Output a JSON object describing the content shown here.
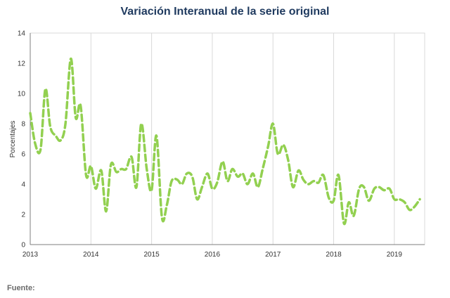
{
  "title": "Variación Interanual de la serie original",
  "source": "Fuente:",
  "chart_data": {
    "type": "line",
    "title": "Variación Interanual de la serie original",
    "xlabel": "",
    "ylabel": "Porcentajes",
    "xlim": [
      2013,
      2019.5
    ],
    "ylim": [
      0,
      14
    ],
    "xticks": [
      2013,
      2014,
      2015,
      2016,
      2017,
      2018,
      2019
    ],
    "yticks": [
      0,
      2,
      4,
      6,
      8,
      10,
      12,
      14
    ],
    "grid": "vertical",
    "legend": "none",
    "series": [
      {
        "color": "#92d050",
        "style": "dashed",
        "x": [
          2013.0,
          2013.08,
          2013.17,
          2013.25,
          2013.33,
          2013.42,
          2013.5,
          2013.58,
          2013.67,
          2013.75,
          2013.83,
          2013.92,
          2014.0,
          2014.08,
          2014.17,
          2014.25,
          2014.33,
          2014.42,
          2014.5,
          2014.58,
          2014.67,
          2014.75,
          2014.83,
          2014.92,
          2015.0,
          2015.08,
          2015.17,
          2015.25,
          2015.33,
          2015.42,
          2015.5,
          2015.58,
          2015.67,
          2015.75,
          2015.83,
          2015.92,
          2016.0,
          2016.08,
          2016.17,
          2016.25,
          2016.33,
          2016.42,
          2016.5,
          2016.58,
          2016.67,
          2016.75,
          2016.83,
          2016.92,
          2017.0,
          2017.08,
          2017.17,
          2017.25,
          2017.33,
          2017.42,
          2017.5,
          2017.58,
          2017.67,
          2017.75,
          2017.83,
          2017.92,
          2018.0,
          2018.08,
          2018.17,
          2018.25,
          2018.33,
          2018.42,
          2018.5,
          2018.58,
          2018.67,
          2018.75,
          2018.83,
          2018.92,
          2019.0,
          2019.08,
          2019.17,
          2019.25,
          2019.33,
          2019.42
        ],
        "values": [
          8.7,
          6.7,
          6.3,
          10.3,
          7.8,
          7.2,
          6.9,
          8.0,
          12.3,
          8.4,
          9.2,
          4.6,
          5.2,
          3.7,
          4.9,
          2.2,
          5.3,
          4.8,
          5.0,
          5.0,
          5.8,
          3.8,
          8.0,
          5.0,
          3.6,
          7.2,
          1.8,
          2.6,
          4.2,
          4.3,
          4.0,
          4.7,
          4.5,
          3.0,
          3.8,
          4.7,
          3.7,
          4.1,
          5.5,
          4.2,
          5.0,
          4.5,
          4.7,
          4.0,
          4.7,
          3.8,
          5.0,
          6.5,
          8.0,
          6.0,
          6.6,
          5.6,
          3.8,
          4.9,
          4.3,
          4.0,
          4.2,
          4.1,
          4.6,
          3.1,
          2.9,
          4.6,
          1.4,
          2.8,
          1.9,
          3.7,
          3.8,
          2.9,
          3.7,
          3.8,
          3.6,
          3.7,
          3.0,
          3.0,
          2.8,
          2.3,
          2.5,
          3.0
        ]
      }
    ]
  }
}
